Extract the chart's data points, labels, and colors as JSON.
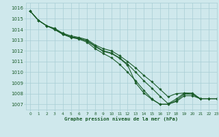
{
  "title": "Graphe pression niveau de la mer (hPa)",
  "xlim": [
    -0.5,
    23
  ],
  "ylim": [
    1006.5,
    1016.5
  ],
  "yticks": [
    1007,
    1008,
    1009,
    1010,
    1011,
    1012,
    1013,
    1014,
    1015,
    1016
  ],
  "xticks": [
    0,
    1,
    2,
    3,
    4,
    5,
    6,
    7,
    8,
    9,
    10,
    11,
    12,
    13,
    14,
    15,
    16,
    17,
    18,
    19,
    20,
    21,
    22,
    23
  ],
  "bg_color": "#cfe8ec",
  "grid_color": "#a8cdd4",
  "line_color": "#1a5c2a",
  "series1": [
    1015.7,
    1014.85,
    1014.35,
    1014.0,
    1013.55,
    1013.3,
    1013.2,
    1012.9,
    1012.4,
    1011.95,
    1011.75,
    1011.3,
    1010.65,
    1009.0,
    1008.05,
    1007.45,
    1007.0,
    1007.0,
    1007.35,
    1007.95,
    1007.95,
    1007.5,
    1007.5,
    1007.5
  ],
  "series2": [
    1015.7,
    1014.85,
    1014.35,
    1014.0,
    1013.55,
    1013.25,
    1013.1,
    1012.8,
    1012.2,
    1011.75,
    1011.35,
    1010.75,
    1010.0,
    1009.2,
    1008.3,
    1007.5,
    1007.0,
    1007.0,
    1007.25,
    1007.8,
    1007.8,
    1007.5,
    1007.5,
    1007.5
  ],
  "series3": [
    1015.7,
    1014.85,
    1014.35,
    1014.05,
    1013.6,
    1013.3,
    1013.15,
    1012.95,
    1012.45,
    1012.0,
    1011.8,
    1011.35,
    1010.75,
    1010.0,
    1009.2,
    1008.5,
    1007.75,
    1007.05,
    1007.5,
    1008.05,
    1008.05,
    1007.5,
    1007.5,
    1007.5
  ],
  "series4": [
    1015.7,
    1014.85,
    1014.35,
    1014.1,
    1013.65,
    1013.4,
    1013.25,
    1013.05,
    1012.55,
    1012.2,
    1012.0,
    1011.55,
    1011.0,
    1010.4,
    1009.7,
    1009.1,
    1008.4,
    1007.7,
    1008.0,
    1008.05,
    1007.95,
    1007.5,
    1007.5,
    1007.5
  ],
  "marker": "D",
  "marker_size": 1.8,
  "line_width": 0.8
}
